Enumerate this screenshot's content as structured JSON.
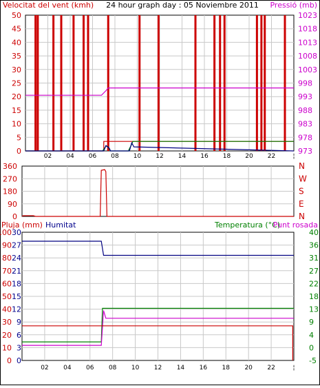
{
  "header": {
    "wind_label": "Velocitat del vent (kmh)",
    "title": "24 hour graph day : 05 Noviembre 2011",
    "pressure_label": "Pressió (mb)"
  },
  "colors": {
    "red": "#cc0000",
    "magenta": "#cc00cc",
    "blue": "#000080",
    "green": "#008000",
    "grid": "#c8c8c8",
    "text_red": "#cc0000",
    "text_blue": "#00008b",
    "text_magenta": "#cc00cc",
    "text_green": "#008000"
  },
  "chart_data": [
    {
      "type": "line",
      "id": "wind_pressure",
      "title": "24 hour graph day : 05 Noviembre 2011",
      "x_ticks": [
        "02",
        "04",
        "06",
        "08",
        "10",
        "12",
        "14",
        "16",
        "18",
        "20",
        "22"
      ],
      "xlim": [
        0,
        24
      ],
      "grid": true,
      "y_left": {
        "label": "Velocitat del vent (kmh)",
        "ticks": [
          "50",
          "45",
          "40",
          "35",
          "30",
          "25",
          "20",
          "15",
          "10",
          "5",
          "0"
        ],
        "lim": [
          0,
          50
        ]
      },
      "y_right": {
        "label": "Pressió (mb)",
        "ticks": [
          "1023",
          "1018",
          "1013",
          "1008",
          "1003",
          "998",
          "993",
          "988",
          "983",
          "978",
          "973"
        ],
        "lim": [
          973,
          1023
        ]
      },
      "gust_spikes": {
        "name": "gusts",
        "x": [
          0.9,
          1.1,
          2.5,
          3.2,
          4.3,
          5.2,
          5.6,
          7.4,
          10.2,
          11.9,
          15.2,
          16.9,
          17.4,
          17.8,
          20.7,
          21.1,
          21.4,
          23.2
        ],
        "y": 50
      },
      "series": [
        {
          "name": "wind",
          "color": "red",
          "axis": "left",
          "x": [
            0,
            7.0,
            7.0,
            9.5,
            9.5,
            24
          ],
          "y": [
            0,
            0,
            3.5,
            3.5,
            3.5,
            3.5
          ]
        },
        {
          "name": "wind_avg",
          "color": "green",
          "axis": "left",
          "x": [
            0,
            6.9,
            7.2,
            7.4,
            7.6,
            9.2,
            9.5,
            9.6,
            24
          ],
          "y": [
            0,
            0,
            1.8,
            1.5,
            0,
            0,
            2.5,
            3.5,
            3.5
          ]
        },
        {
          "name": "wind_dir_small",
          "color": "blue",
          "axis": "left",
          "x": [
            0,
            7.0,
            7.2,
            7.5,
            7.6,
            9.3,
            9.5,
            9.7,
            24
          ],
          "y": [
            0,
            0,
            2.0,
            1.0,
            0,
            0,
            3.0,
            1.5,
            0
          ]
        },
        {
          "name": "pressure",
          "color": "magenta",
          "axis": "right",
          "x": [
            0,
            6.8,
            7.2,
            7.4,
            24
          ],
          "y": [
            993.5,
            993.5,
            995.2,
            996.2,
            996.2
          ]
        }
      ]
    },
    {
      "type": "line",
      "id": "wind_direction",
      "xlim": [
        0,
        24
      ],
      "grid": true,
      "y_left": {
        "ticks": [
          "360",
          "270",
          "180",
          "90",
          "0"
        ],
        "lim": [
          0,
          360
        ]
      },
      "y_right_letters": [
        "N",
        "W",
        "S",
        "E",
        "N"
      ],
      "series": [
        {
          "name": "direction",
          "color": "red",
          "x": [
            0,
            0.1,
            1.0,
            1.2,
            6.8,
            6.9,
            7.0,
            7.3,
            7.4,
            7.5,
            7.6,
            7.8,
            24
          ],
          "y": [
            0,
            5,
            5,
            0,
            0,
            0,
            330,
            335,
            320,
            0,
            0,
            0,
            0
          ]
        }
      ]
    },
    {
      "type": "line",
      "id": "rain_humidity_temp",
      "x_ticks": [
        "02",
        "04",
        "06",
        "08",
        "10",
        "12",
        "14",
        "16",
        "18",
        "20",
        "22"
      ],
      "xlim": [
        0,
        24
      ],
      "grid": true,
      "labels": {
        "rain": "Pluja (mm)",
        "humidity": "Humitat",
        "temperature": "Temperatura (°C)",
        "dew": "Punt rosada"
      },
      "y_rain": {
        "ticks": [
          "100",
          "90",
          "80",
          "70",
          "60",
          "50",
          "40",
          "30",
          "20",
          "10",
          "0"
        ],
        "lim": [
          0,
          100
        ]
      },
      "y_humidity": {
        "ticks": [
          "30",
          "27",
          "24",
          "21",
          "18",
          "15",
          "12",
          "9",
          "6",
          "3",
          "0"
        ],
        "lim": [
          0,
          30
        ]
      },
      "y_temp": {
        "ticks": [
          "40",
          "36",
          "31",
          "27",
          "22",
          "18",
          "13",
          "9",
          "4",
          "0",
          "-5"
        ],
        "lim": [
          -5,
          40
        ]
      },
      "series": [
        {
          "name": "humidity",
          "color": "blue",
          "axis": "left",
          "x": [
            0,
            7.0,
            7.2,
            24
          ],
          "y": [
            93,
            93,
            82,
            82
          ]
        },
        {
          "name": "temperature",
          "color": "green",
          "axis": "right",
          "x": [
            0,
            7.0,
            7.1,
            24
          ],
          "y": [
            1.5,
            1.5,
            13.3,
            13.3
          ]
        },
        {
          "name": "dew_point",
          "color": "magenta",
          "axis": "right",
          "x": [
            0,
            7.0,
            7.2,
            7.4,
            24
          ],
          "y": [
            0.3,
            0.3,
            12.5,
            9.8,
            9.8
          ]
        },
        {
          "name": "rain",
          "color": "red",
          "axis": "left",
          "x": [
            0,
            23.9,
            23.9
          ],
          "y": [
            27,
            27,
            0
          ]
        }
      ]
    }
  ]
}
